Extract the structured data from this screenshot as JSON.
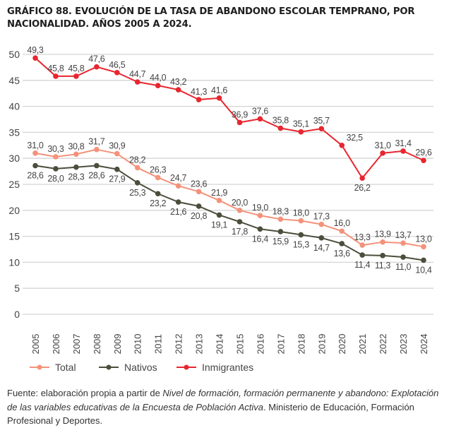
{
  "chart_data": {
    "type": "line",
    "title": "GRÁFICO 88. EVOLUCIÓN DE LA TASA DE ABANDONO ESCOLAR TEMPRANO, POR NACIONALIDAD. AÑOS 2005 A 2024.",
    "xlabel": "",
    "ylabel": "",
    "ylim": [
      0,
      50
    ],
    "yticks": [
      "0",
      "5",
      "10",
      "15",
      "20",
      "25",
      "30",
      "35",
      "40",
      "45",
      "50"
    ],
    "grid": true,
    "legend_position": "bottom-left",
    "categories": [
      "2005",
      "2006",
      "2007",
      "2008",
      "2009",
      "2010",
      "2011",
      "2012",
      "2013",
      "2014",
      "2015",
      "2016",
      "2017",
      "2018",
      "2019",
      "2020",
      "2021",
      "2022",
      "2023",
      "2024"
    ],
    "series": [
      {
        "name": "Total",
        "color": "#f4927a",
        "values": [
          31.0,
          30.3,
          30.8,
          31.7,
          30.9,
          28.2,
          26.3,
          24.7,
          23.6,
          21.9,
          20.0,
          19.0,
          18.3,
          18.0,
          17.3,
          16.0,
          13.3,
          13.9,
          13.7,
          13.0
        ],
        "labels": [
          "31,0",
          "30,3",
          "30,8",
          "31,7",
          "30,9",
          "28,2",
          "26,3",
          "24,7",
          "23,6",
          "21,9",
          "20,0",
          "19,0",
          "18,3",
          "18,0",
          "17,3",
          "16,0",
          "13,3",
          "13,9",
          "13,7",
          "13,0"
        ]
      },
      {
        "name": "Nativos",
        "color": "#4a4f3c",
        "values": [
          28.6,
          28.0,
          28.3,
          28.6,
          27.9,
          25.3,
          23.2,
          21.6,
          20.8,
          19.1,
          17.8,
          16.4,
          15.9,
          15.3,
          14.7,
          13.6,
          11.4,
          11.3,
          11.0,
          10.4
        ],
        "labels": [
          "28,6",
          "28,0",
          "28,3",
          "28,6",
          "27,9",
          "25,3",
          "23,2",
          "21,6",
          "20,8",
          "19,1",
          "17,8",
          "16,4",
          "15,9",
          "15,3",
          "14,7",
          "13,6",
          "11,4",
          "11,3",
          "11,0",
          "10,4"
        ]
      },
      {
        "name": "Inmigrantes",
        "color": "#e8262f",
        "values": [
          49.3,
          45.8,
          45.8,
          47.6,
          46.5,
          44.7,
          44.0,
          43.2,
          41.3,
          41.6,
          36.9,
          37.6,
          35.8,
          35.1,
          35.7,
          32.5,
          26.2,
          31.0,
          31.4,
          29.6
        ],
        "labels": [
          "49,3",
          "45,8",
          "45,8",
          "47,6",
          "46,5",
          "44,7",
          "44,0",
          "43,2",
          "41,3",
          "41,6",
          "36,9",
          "37,6",
          "35,8",
          "35,1",
          "35,7",
          "32,5",
          "26,2",
          "31,0",
          "31,4",
          "29,6"
        ]
      }
    ]
  },
  "source": {
    "prefix": "Fuente: elaboración propia a partir de ",
    "italic_title": "Nivel de formación, formación permanente y abandono: Explotación de las variables educativas de la Encuesta de Población Activa",
    "suffix": ". Ministerio de Educación, Formación Profesional y Deportes."
  }
}
